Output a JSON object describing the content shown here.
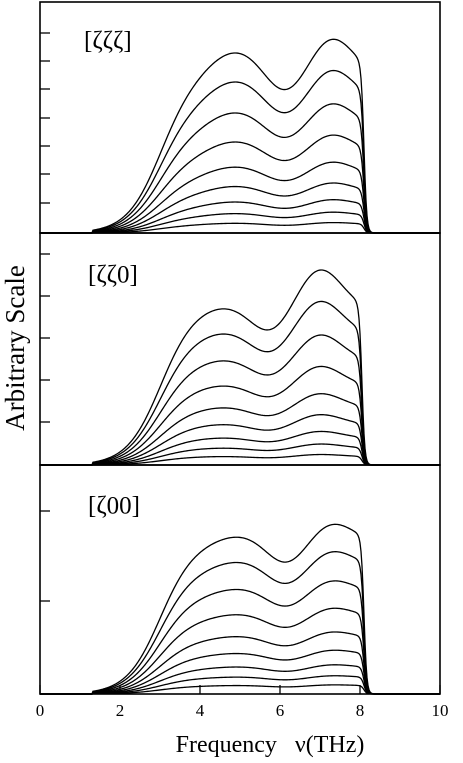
{
  "chart_data": [
    {
      "type": "line",
      "panel_label": "[ζζζ]",
      "xlim": [
        0,
        10
      ],
      "y_axis": "arbitrary units, ticks unlabeled",
      "curve_count": 9,
      "cutoff_frequency": 8.1,
      "peaks_of_top_curve": [
        {
          "x": 4.9,
          "y": 0.9
        },
        {
          "x": 7.3,
          "y": 0.95
        }
      ],
      "series": [
        {
          "scale": 0.05
        },
        {
          "scale": 0.1
        },
        {
          "scale": 0.16
        },
        {
          "scale": 0.24
        },
        {
          "scale": 0.34
        },
        {
          "scale": 0.47
        },
        {
          "scale": 0.62
        },
        {
          "scale": 0.78
        },
        {
          "scale": 0.93
        }
      ]
    },
    {
      "type": "line",
      "panel_label": "[ζζ0]",
      "xlim": [
        0,
        10
      ],
      "y_axis": "arbitrary units, ticks unlabeled",
      "curve_count": 9,
      "cutoff_frequency": 8.05,
      "peaks_of_top_curve": [
        {
          "x": 4.5,
          "y": 0.8
        },
        {
          "x": 7.0,
          "y": 0.95
        }
      ],
      "series": [
        {
          "scale": 0.05
        },
        {
          "scale": 0.1
        },
        {
          "scale": 0.16
        },
        {
          "scale": 0.24
        },
        {
          "scale": 0.34
        },
        {
          "scale": 0.47
        },
        {
          "scale": 0.62
        },
        {
          "scale": 0.78
        },
        {
          "scale": 0.93
        }
      ]
    },
    {
      "type": "line",
      "panel_label": "[ζ00]",
      "xlim": [
        0,
        10
      ],
      "y_axis": "arbitrary units, ticks unlabeled",
      "curve_count": 9,
      "cutoff_frequency": 8.1,
      "peaks_of_top_curve": [
        {
          "x": 5.0,
          "y": 0.8
        },
        {
          "x": 7.3,
          "y": 0.85
        }
      ],
      "series": [
        {
          "scale": 0.05
        },
        {
          "scale": 0.1
        },
        {
          "scale": 0.16
        },
        {
          "scale": 0.24
        },
        {
          "scale": 0.34
        },
        {
          "scale": 0.47
        },
        {
          "scale": 0.62
        },
        {
          "scale": 0.78
        },
        {
          "scale": 0.93
        }
      ]
    }
  ],
  "axes": {
    "xlabel": "Frequency   ν(THz)",
    "ylabel": "Arbitrary Scale",
    "xticks": [
      "0",
      "2",
      "4",
      "6",
      "8",
      "10"
    ]
  },
  "style": {
    "line_color": "#000000",
    "background": "#ffffff"
  }
}
